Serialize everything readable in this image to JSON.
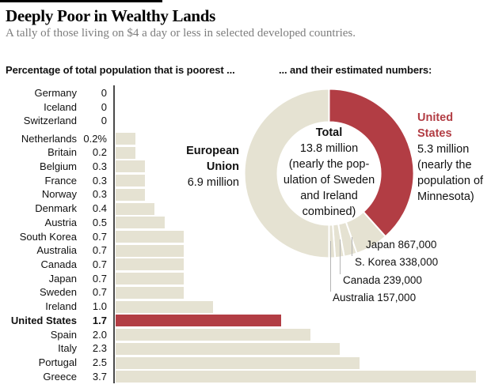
{
  "page": {
    "title": "Deeply Poor in Wealthy Lands",
    "subtitle": "A tally of those living on $4 a day or less in selected developed countries.",
    "left_header": "Percentage of total population that is poorest ...",
    "right_header": "... and their estimated numbers:"
  },
  "colors": {
    "accent_red": "#b23d44",
    "bar_cream": "#e5e2d2",
    "axis": "#4a4a4a",
    "leader_line": "#b5b5b5",
    "subtitle_gray": "#7d7d7d",
    "text": "#111111"
  },
  "chart_data": [
    {
      "type": "bar",
      "orientation": "horizontal",
      "title": "Percentage of total population that is poorest ...",
      "unit": "%",
      "grid": false,
      "xlim": [
        0,
        3.85
      ],
      "categories": [
        "Germany",
        "Iceland",
        "Switzerland",
        "Netherlands",
        "Britain",
        "Belgium",
        "France",
        "Norway",
        "Denmark",
        "Austria",
        "South Korea",
        "Australia",
        "Canada",
        "Japan",
        "Sweden",
        "Ireland",
        "United States",
        "Spain",
        "Italy",
        "Portugal",
        "Greece"
      ],
      "values": [
        0,
        0,
        0,
        0.2,
        0.2,
        0.3,
        0.3,
        0.3,
        0.4,
        0.5,
        0.7,
        0.7,
        0.7,
        0.7,
        0.7,
        1.0,
        1.7,
        2.0,
        2.3,
        2.5,
        3.7
      ],
      "value_labels": [
        "0",
        "0",
        "0",
        "0.2%",
        "0.2",
        "0.3",
        "0.3",
        "0.3",
        "0.4",
        "0.5",
        "0.7",
        "0.7",
        "0.7",
        "0.7",
        "0.7",
        "1.0",
        "1.7",
        "2.0",
        "2.3",
        "2.5",
        "3.7"
      ],
      "highlight_category": "United States"
    },
    {
      "type": "donut",
      "title": "... and their estimated numbers:",
      "start_angle_deg": 0,
      "direction": "clockwise",
      "slices": [
        {
          "label": "United States",
          "value_millions": 5.3,
          "display": "5.3 million",
          "highlight": true
        },
        {
          "label": "Japan",
          "value_millions": 0.867,
          "display": "867,000"
        },
        {
          "label": "S. Korea",
          "value_millions": 0.338,
          "display": "338,000"
        },
        {
          "label": "Canada",
          "value_millions": 0.239,
          "display": "239,000"
        },
        {
          "label": "Australia",
          "value_millions": 0.157,
          "display": "157,000"
        },
        {
          "label": "European Union",
          "value_millions": 6.9,
          "display": "6.9 million"
        }
      ],
      "center": {
        "title": "Total",
        "value_millions": 13.8,
        "lines": [
          "13.8 million",
          "(nearly the pop-",
          "ulation of Sweden",
          "and Ireland",
          "combined)"
        ]
      },
      "side_labels": {
        "us": {
          "name_lines": [
            "United",
            "States"
          ],
          "value": "5.3 million",
          "note_lines": [
            "(nearly the",
            "population of",
            "Minnesota)"
          ]
        },
        "eu": {
          "name_lines": [
            "European",
            "Union"
          ],
          "value": "6.9 million"
        }
      }
    }
  ]
}
